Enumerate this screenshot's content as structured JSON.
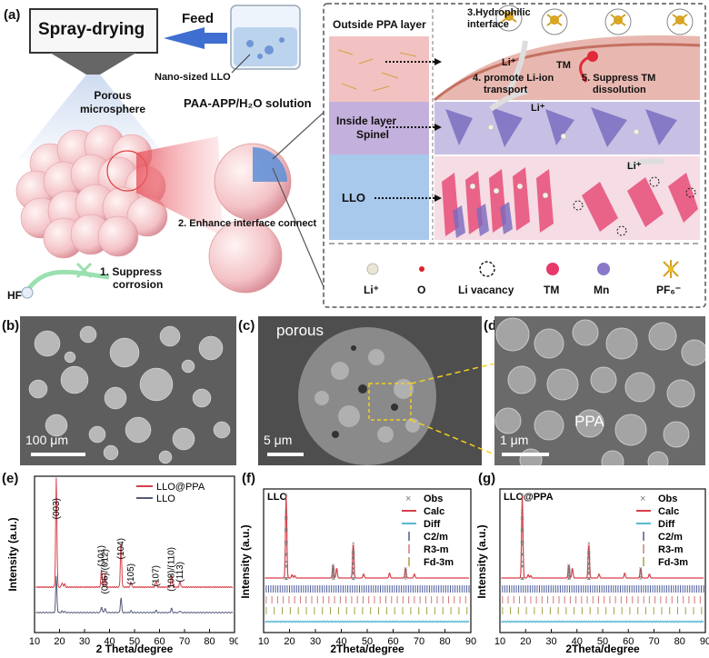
{
  "panel_a": {
    "label": "(a)",
    "spray_drying": "Spray-drying",
    "feed": "Feed",
    "nano_llo": "Nano-sized LLO",
    "solution": "PAA-APP/H₂O  solution",
    "porous_microsphere": "Porous\nmicrosphere",
    "enhance": "2. Enhance interface connect",
    "suppress_corrosion_1": "1.  Suppress",
    "suppress_corrosion_2": "corrosion",
    "hf": "HF",
    "outside_ppa": "Outside PPA layer",
    "hydrophilic_1": "3.Hydrophilic",
    "hydrophilic_2": "interface",
    "promote_1": "4. promote Li-ion",
    "promote_2": "transport",
    "suppress_tm_1": "5. Suppress TM",
    "suppress_tm_2": "dissolution",
    "inside_layer_1": "Inside layer",
    "inside_layer_2": "Spinel",
    "llo": "LLO",
    "li_plus": "Li⁺",
    "tm": "TM",
    "legend": [
      {
        "label": "Li⁺",
        "color": "#e8e3d6"
      },
      {
        "label": "O",
        "color": "#e0202a"
      },
      {
        "label": "Li vacancy",
        "color": "none"
      },
      {
        "label": "TM",
        "color": "#e53a6a"
      },
      {
        "label": "Mn",
        "color": "#8a78c8"
      },
      {
        "label": "PF₆⁻",
        "color": "#e6c020"
      }
    ]
  },
  "panel_b": {
    "label": "(b)",
    "scale": "100 μm"
  },
  "panel_c": {
    "label": "(c)",
    "scale": "5 μm",
    "annotation": "porous"
  },
  "panel_d": {
    "label": "(d)",
    "scale": "1 μm",
    "annotation": "PPA"
  },
  "panel_e": {
    "label": "(e)",
    "chart_data": {
      "type": "line",
      "xlabel": "2 Theta/degree",
      "ylabel": "Intensity (a.u.)",
      "xlim": [
        10,
        90
      ],
      "xticks": [
        10,
        20,
        30,
        40,
        50,
        60,
        70,
        80,
        90
      ],
      "legend": "top-right",
      "series": [
        {
          "name": "LLO@PPA",
          "color": "#d6404a"
        },
        {
          "name": "LLO",
          "color": "#555a7a"
        }
      ],
      "peaks": [
        {
          "label": "(003)",
          "x": 18.7
        },
        {
          "label": "(101)",
          "x": 36.8
        },
        {
          "label": "(006)/(012)",
          "x": 38.2
        },
        {
          "label": "(104)",
          "x": 44.6
        },
        {
          "label": "(105)",
          "x": 48.6
        },
        {
          "label": "(107)",
          "x": 58.6
        },
        {
          "label": "(108)/(110)",
          "x": 64.8
        },
        {
          "label": "(113)",
          "x": 68.2
        }
      ]
    }
  },
  "panel_f": {
    "label": "(f)",
    "sample": "LLO",
    "chart_data": {
      "type": "scatter",
      "xlabel": "2Theta/degree",
      "ylabel": "Intensity (a.u.)",
      "xlim": [
        10,
        90
      ],
      "xticks": [
        10,
        20,
        30,
        40,
        50,
        60,
        70,
        80,
        90
      ],
      "legend": "top-right",
      "legend_entries": [
        {
          "name": "Obs",
          "color": "#777777"
        },
        {
          "name": "Calc",
          "color": "#d6404a"
        },
        {
          "name": "Diff",
          "color": "#5ab8d0"
        },
        {
          "name": "C2/m",
          "color": "#4a5a9a"
        },
        {
          "name": "R3-m",
          "color": "#d07a7a"
        },
        {
          "name": "Fd-3m",
          "color": "#a6a040"
        }
      ]
    }
  },
  "panel_g": {
    "label": "(g)",
    "sample": "LLO@PPA",
    "chart_data": {
      "type": "scatter",
      "xlabel": "2Theta/degree",
      "ylabel": "Intensity (a.u.)",
      "xlim": [
        10,
        90
      ],
      "xticks": [
        10,
        20,
        30,
        40,
        50,
        60,
        70,
        80,
        90
      ],
      "legend": "top-right",
      "legend_entries": [
        {
          "name": "Obs",
          "color": "#777777"
        },
        {
          "name": "Calc",
          "color": "#d6404a"
        },
        {
          "name": "Diff",
          "color": "#5ab8d0"
        },
        {
          "name": "C2/m",
          "color": "#4a5a9a"
        },
        {
          "name": "R3-m",
          "color": "#d07a7a"
        },
        {
          "name": "Fd-3m",
          "color": "#a6a040"
        }
      ]
    }
  }
}
